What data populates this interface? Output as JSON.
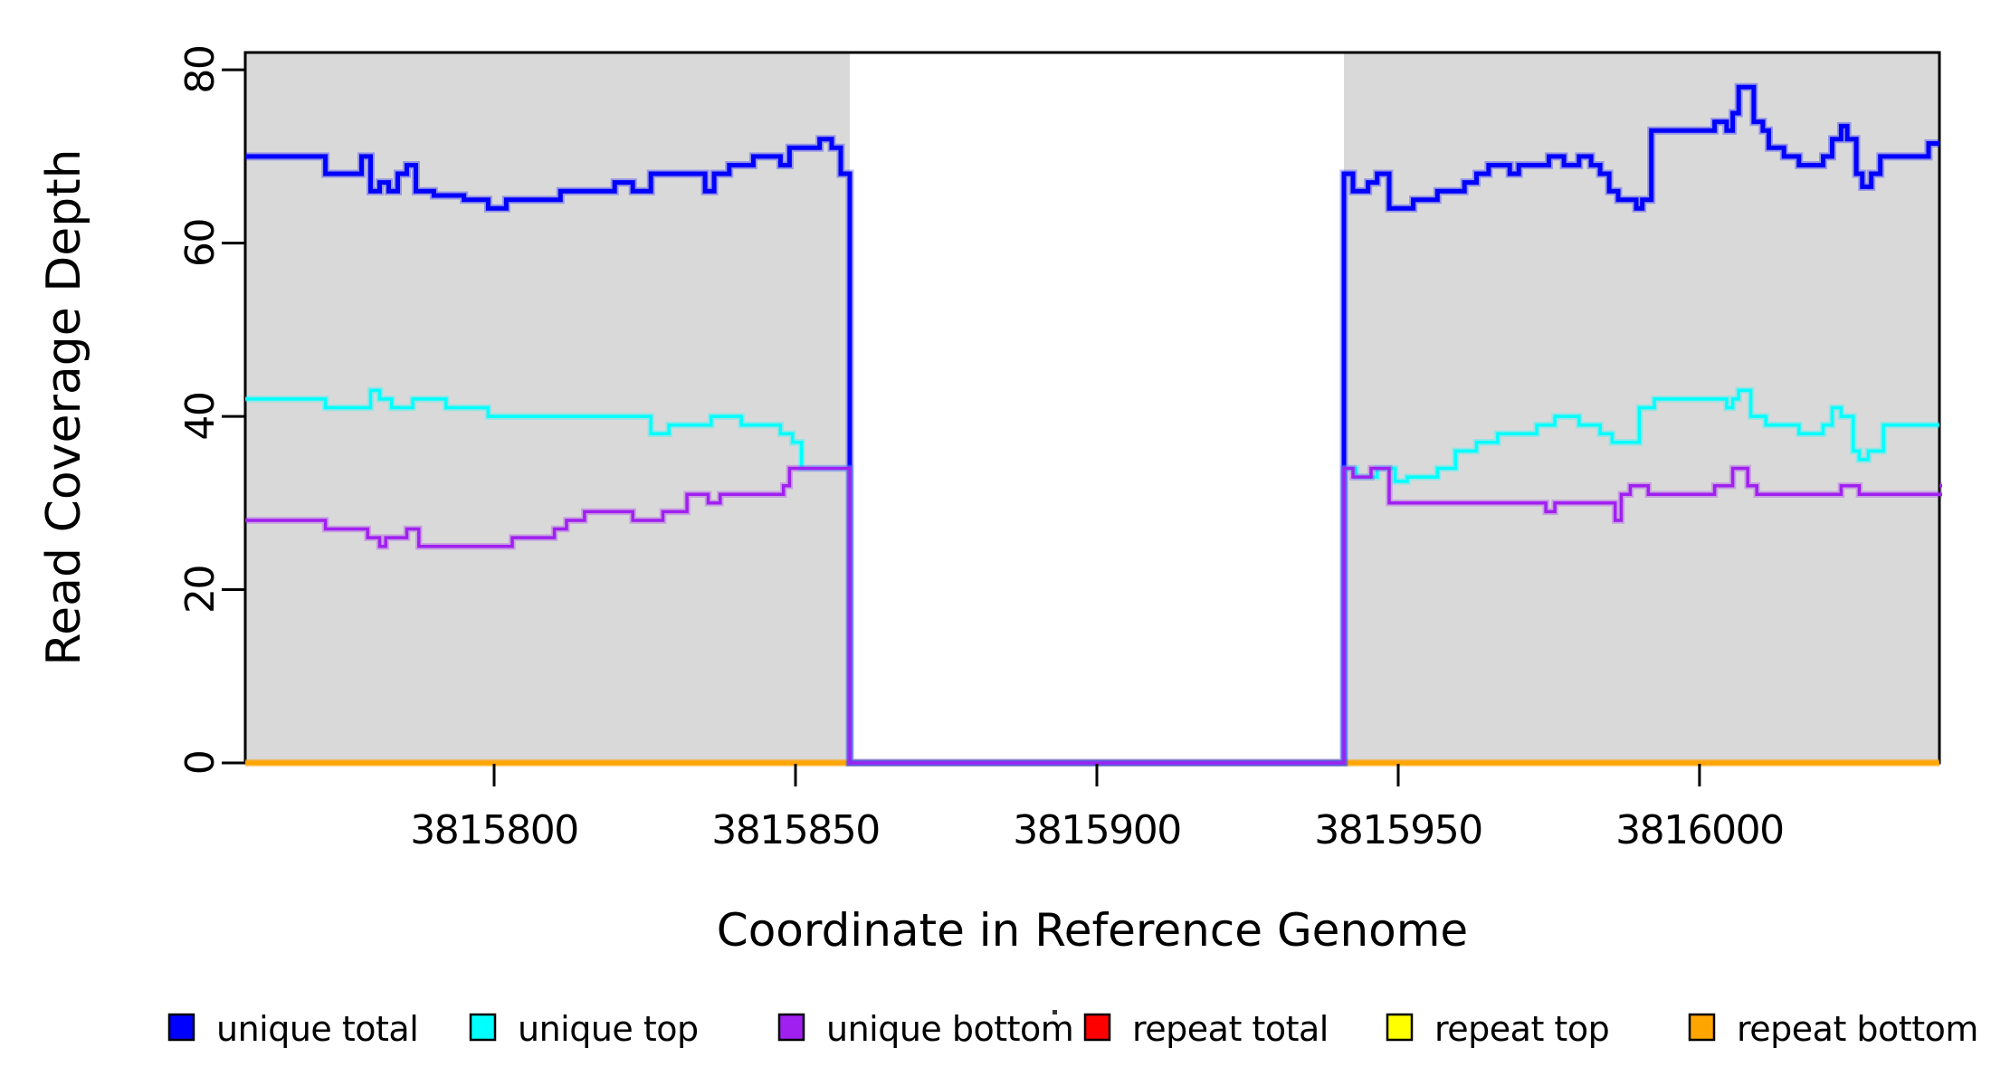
{
  "chart_data": {
    "type": "line",
    "subtype": "step-after",
    "title": "",
    "xlabel": "Coordinate in Reference Genome",
    "ylabel": "Read Coverage Depth",
    "xlim": [
      3815758.7,
      3816039.8
    ],
    "ylim": [
      0,
      82
    ],
    "x_ticks": [
      3815800,
      3815850,
      3815900,
      3815950,
      3816000
    ],
    "y_ticks": [
      0,
      20,
      40,
      60,
      80
    ],
    "grid": false,
    "legend_position": "bottom",
    "plot_background": "#ffffff",
    "shaded_regions": [
      {
        "x0": 3815758.7,
        "x1": 3815859,
        "color": "#d9d9d9",
        "name": "left-unique-region"
      },
      {
        "x0": 3815941,
        "x1": 3816039.8,
        "color": "#d9d9d9",
        "name": "right-unique-region"
      }
    ],
    "gap_region": {
      "x0": 3815859,
      "x1": 3815941,
      "note": "all unique series drop to 0"
    },
    "series": [
      {
        "name": "repeat total",
        "color": "#ff0000",
        "width": 3,
        "points": [
          [
            3815758.7,
            0
          ]
        ]
      },
      {
        "name": "repeat top",
        "color": "#ffff00",
        "width": 3,
        "points": [
          [
            3815758.7,
            0
          ]
        ]
      },
      {
        "name": "repeat bottom",
        "color": "#ffa500",
        "width": 4.5,
        "points": [
          [
            3815758.7,
            0
          ]
        ]
      },
      {
        "name": "unique total",
        "color": "#0000ff",
        "width": 5,
        "points": [
          [
            3815758.7,
            70
          ],
          [
            3815772,
            68
          ],
          [
            3815778,
            70
          ],
          [
            3815779.5,
            66
          ],
          [
            3815781,
            67
          ],
          [
            3815782.5,
            66
          ],
          [
            3815784,
            68
          ],
          [
            3815785.5,
            69
          ],
          [
            3815787,
            66
          ],
          [
            3815790,
            65.5
          ],
          [
            3815795,
            65
          ],
          [
            3815799,
            64
          ],
          [
            3815802,
            65
          ],
          [
            3815811,
            66
          ],
          [
            3815820,
            67
          ],
          [
            3815823,
            66
          ],
          [
            3815826,
            68
          ],
          [
            3815835,
            66
          ],
          [
            3815836.5,
            68
          ],
          [
            3815839,
            69
          ],
          [
            3815843,
            70
          ],
          [
            3815847.5,
            69
          ],
          [
            3815849,
            71
          ],
          [
            3815854,
            72
          ],
          [
            3815856,
            71
          ],
          [
            3815857.5,
            68
          ],
          [
            3815859,
            0
          ],
          [
            3815941,
            68
          ],
          [
            3815942.5,
            66
          ],
          [
            3815945,
            67
          ],
          [
            3815946.5,
            68
          ],
          [
            3815948.5,
            64
          ],
          [
            3815952.5,
            65
          ],
          [
            3815956.5,
            66
          ],
          [
            3815961,
            67
          ],
          [
            3815963,
            68
          ],
          [
            3815965,
            69
          ],
          [
            3815968.5,
            68
          ],
          [
            3815970,
            69
          ],
          [
            3815975,
            70
          ],
          [
            3815977.5,
            69
          ],
          [
            3815980,
            70
          ],
          [
            3815982,
            69
          ],
          [
            3815983.5,
            68
          ],
          [
            3815985,
            66
          ],
          [
            3815986.5,
            65
          ],
          [
            3815989.5,
            64
          ],
          [
            3815990.5,
            65
          ],
          [
            3815992,
            73
          ],
          [
            3816002.5,
            74
          ],
          [
            3816004.5,
            73
          ],
          [
            3816005.5,
            75
          ],
          [
            3816006.5,
            78
          ],
          [
            3816009,
            74
          ],
          [
            3816010.5,
            73
          ],
          [
            3816011.5,
            71
          ],
          [
            3816014,
            70
          ],
          [
            3816016.5,
            69
          ],
          [
            3816020.5,
            70
          ],
          [
            3816022,
            72
          ],
          [
            3816023.5,
            73.5
          ],
          [
            3816024.5,
            72
          ],
          [
            3816026,
            68
          ],
          [
            3816027,
            66.5
          ],
          [
            3816028.5,
            68
          ],
          [
            3816030,
            70
          ],
          [
            3816038,
            71.5
          ]
        ]
      },
      {
        "name": "unique top",
        "color": "#00ffff",
        "width": 3.5,
        "points": [
          [
            3815758.7,
            42
          ],
          [
            3815772,
            41
          ],
          [
            3815779.5,
            43
          ],
          [
            3815781,
            42
          ],
          [
            3815783,
            41
          ],
          [
            3815786.5,
            42
          ],
          [
            3815792,
            41
          ],
          [
            3815799,
            40
          ],
          [
            3815826,
            38
          ],
          [
            3815829,
            39
          ],
          [
            3815836,
            40
          ],
          [
            3815841,
            39
          ],
          [
            3815847.5,
            38
          ],
          [
            3815849.5,
            37
          ],
          [
            3815851,
            34
          ],
          [
            3815859,
            0
          ],
          [
            3815941,
            34
          ],
          [
            3815943,
            33
          ],
          [
            3815946.5,
            34
          ],
          [
            3815949.5,
            32.5
          ],
          [
            3815951.5,
            33
          ],
          [
            3815956.5,
            34
          ],
          [
            3815959.5,
            36
          ],
          [
            3815963,
            37
          ],
          [
            3815966.5,
            38
          ],
          [
            3815973,
            39
          ],
          [
            3815976,
            40
          ],
          [
            3815980,
            39
          ],
          [
            3815983.5,
            38
          ],
          [
            3815985.5,
            37
          ],
          [
            3815990,
            41
          ],
          [
            3815992.5,
            42
          ],
          [
            3816004.5,
            41
          ],
          [
            3816005.5,
            42
          ],
          [
            3816006.5,
            43
          ],
          [
            3816008.5,
            40
          ],
          [
            3816011,
            39
          ],
          [
            3816016.5,
            38
          ],
          [
            3816020.5,
            39
          ],
          [
            3816022,
            41
          ],
          [
            3816023.5,
            40
          ],
          [
            3816025.5,
            36
          ],
          [
            3816026.5,
            35
          ],
          [
            3816028,
            36
          ],
          [
            3816030.5,
            39
          ]
        ]
      },
      {
        "name": "unique bottom",
        "color": "#a020f0",
        "width": 3.5,
        "points": [
          [
            3815758.7,
            28
          ],
          [
            3815772,
            27
          ],
          [
            3815779,
            26
          ],
          [
            3815781,
            25
          ],
          [
            3815782,
            26
          ],
          [
            3815785.5,
            27
          ],
          [
            3815787.5,
            25
          ],
          [
            3815803,
            26
          ],
          [
            3815810,
            27
          ],
          [
            3815812,
            28
          ],
          [
            3815815,
            29
          ],
          [
            3815823,
            28
          ],
          [
            3815828,
            29
          ],
          [
            3815832,
            31
          ],
          [
            3815835.5,
            30
          ],
          [
            3815837.5,
            31
          ],
          [
            3815848,
            32
          ],
          [
            3815849,
            34
          ],
          [
            3815859,
            0
          ],
          [
            3815941,
            34
          ],
          [
            3815942.5,
            33
          ],
          [
            3815945.5,
            34
          ],
          [
            3815948.5,
            30
          ],
          [
            3815974.5,
            29
          ],
          [
            3815976,
            30
          ],
          [
            3815986,
            28
          ],
          [
            3815987,
            31
          ],
          [
            3815988.5,
            32
          ],
          [
            3815991.5,
            31
          ],
          [
            3816002.5,
            32
          ],
          [
            3816005.5,
            34
          ],
          [
            3816008,
            32
          ],
          [
            3816009.5,
            31
          ],
          [
            3816023.5,
            32
          ],
          [
            3816026.5,
            31
          ],
          [
            3816040.5,
            32
          ]
        ]
      }
    ],
    "legend": [
      {
        "label": "unique total",
        "color": "#0000ff"
      },
      {
        "label": "unique top",
        "color": "#00ffff"
      },
      {
        "label": "unique bottom",
        "color": "#a020f0"
      },
      {
        "label": "repeat total",
        "color": "#ff0000"
      },
      {
        "label": "repeat top",
        "color": "#ffff00"
      },
      {
        "label": "repeat bottom",
        "color": "#ffa500"
      }
    ]
  }
}
